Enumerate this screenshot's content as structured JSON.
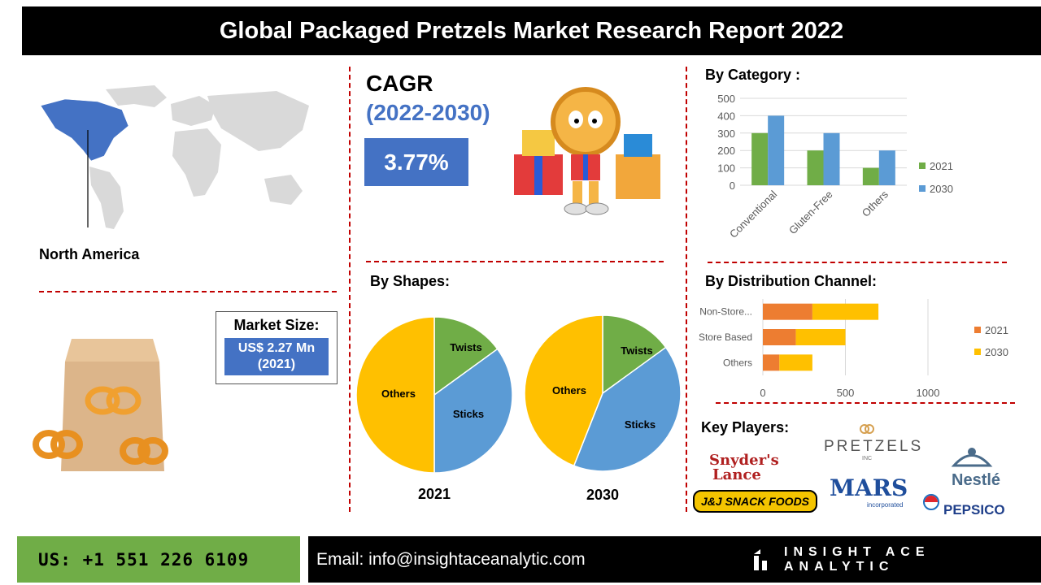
{
  "header": {
    "title": "Global Packaged Pretzels Market Research Report 2022"
  },
  "region": {
    "label": "North America"
  },
  "cagr": {
    "title": "CAGR",
    "period": "(2022-2030)",
    "value": "3.77%"
  },
  "market_size": {
    "title": "Market Size:",
    "value_line1": "US$ 2.27 Mn",
    "value_line2": "(2021)"
  },
  "sections": {
    "by_category": "By Category :",
    "by_shapes": "By Shapes:",
    "by_distribution": "By  Distribution Channel:",
    "key_players": "Key Players:"
  },
  "key_players": {
    "snyders_line1": "Snyder's",
    "snyders_line2": "Lance",
    "jj": "J&J SNACK FOODS",
    "pretzels": "PRETZELS",
    "pretzels_sub": "INC",
    "mars": "MARS",
    "mars_sub": "incorporated",
    "nestle": "Nestlé",
    "pepsico": "PEPSICO"
  },
  "footer": {
    "phone": "US: +1 551 226 6109",
    "email": "Email: info@insightaceanalytic.com",
    "brand": "INSIGHT ACE ANALYTIC"
  },
  "colors": {
    "green": "#70ad47",
    "blue": "#5b9bd5",
    "orange": "#ed7d31",
    "yellow": "#ffc000",
    "accent_blue": "#4472c4",
    "map_highlight": "#4472c4",
    "map_gray": "#d9d9d9"
  },
  "chart_data": [
    {
      "id": "by_category",
      "type": "bar",
      "categories": [
        "Conventional",
        "Gluten-Free",
        "Others"
      ],
      "series": [
        {
          "name": "2021",
          "values": [
            300,
            200,
            100
          ],
          "color": "#70ad47"
        },
        {
          "name": "2030",
          "values": [
            400,
            300,
            200
          ],
          "color": "#5b9bd5"
        }
      ],
      "ylim": [
        0,
        500
      ],
      "yticks": [
        "0",
        "100",
        "200",
        "300",
        "400",
        "500"
      ],
      "grid": true,
      "legend": "right"
    },
    {
      "id": "shapes_2021",
      "type": "pie",
      "title": "2021",
      "labels": [
        "Twists",
        "Sticks",
        "Others"
      ],
      "values": [
        15,
        35,
        50
      ],
      "colors": [
        "#70ad47",
        "#5b9bd5",
        "#ffc000"
      ]
    },
    {
      "id": "shapes_2030",
      "type": "pie",
      "title": "2030",
      "labels": [
        "Twists",
        "Sticks",
        "Others"
      ],
      "values": [
        15,
        41,
        44
      ],
      "colors": [
        "#70ad47",
        "#5b9bd5",
        "#ffc000"
      ]
    },
    {
      "id": "by_distribution",
      "type": "bar",
      "orientation": "horizontal",
      "stacked": true,
      "categories": [
        "Non-Store...",
        "Store Based",
        "Others"
      ],
      "series": [
        {
          "name": "2021",
          "values": [
            300,
            200,
            100
          ],
          "color": "#ed7d31"
        },
        {
          "name": "2030",
          "values": [
            400,
            300,
            200
          ],
          "color": "#ffc000"
        }
      ],
      "xlim": [
        0,
        1000
      ],
      "xticks": [
        "0",
        "500",
        "1000"
      ],
      "grid": true,
      "legend": "right"
    }
  ]
}
